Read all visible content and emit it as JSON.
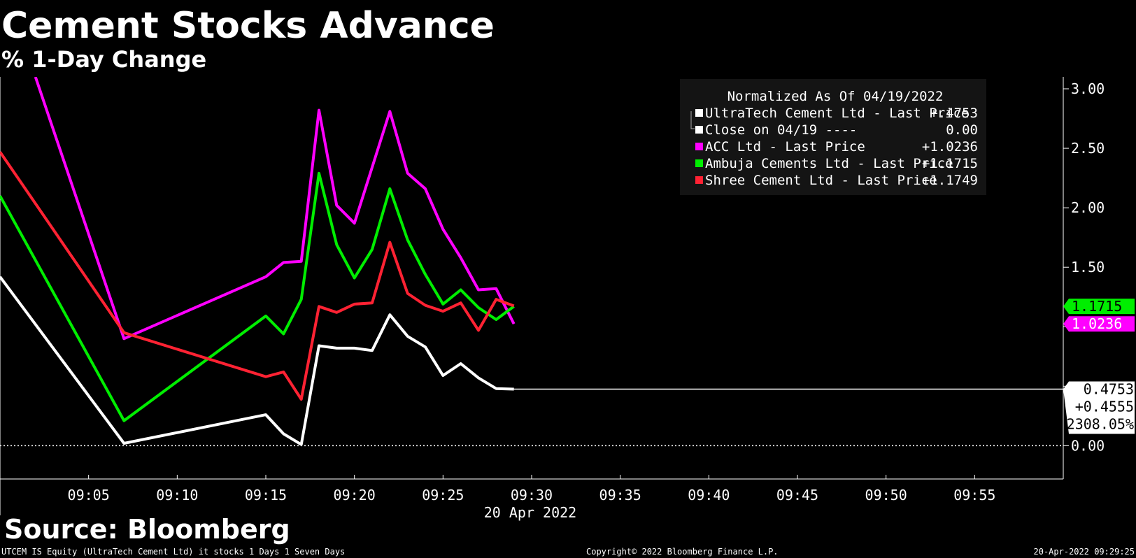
{
  "chart_data": {
    "type": "line",
    "title": "Cement Stocks Advance",
    "subtitle": "% 1-Day Change",
    "x_date_label": "20 Apr 2022",
    "x_ticks": [
      "09:05",
      "09:10",
      "09:15",
      "09:20",
      "09:25",
      "09:30",
      "09:35",
      "09:40",
      "09:45",
      "09:50",
      "09:55"
    ],
    "y_ticks": [
      "3.00",
      "2.50",
      "2.00",
      "1.50",
      "0.00"
    ],
    "ylim": [
      -0.28,
      3.1
    ],
    "xlim": [
      "09:00",
      "09:60"
    ],
    "grid": false,
    "legend": {
      "title": "Normalized As Of 04/19/2022",
      "placement": "top-right",
      "entries": [
        {
          "label": "UltraTech Cement Ltd - Last Price",
          "value": "+.4753",
          "color": "#ffffff"
        },
        {
          "label": "Close on 04/19 ----",
          "value": "0.00",
          "color": "#ffffff"
        },
        {
          "label": "ACC Ltd - Last Price",
          "value": "+1.0236",
          "color": "#ff00ff"
        },
        {
          "label": "Ambuja Cements Ltd - Last Price",
          "value": "+1.1715",
          "color": "#00ee00"
        },
        {
          "label": "Shree Cement Ltd - Last Price",
          "value": "+1.1749",
          "color": "#ff2233"
        }
      ]
    },
    "series": [
      {
        "name": "UltraTech Cement Ltd - Last Price",
        "color": "#ffffff",
        "x": [
          "09:00",
          "09:07",
          "09:15",
          "09:16",
          "09:17",
          "09:18",
          "09:19",
          "09:20",
          "09:21",
          "09:22",
          "09:23",
          "09:24",
          "09:25",
          "09:26",
          "09:27",
          "09:28",
          "09:29"
        ],
        "y": [
          1.42,
          0.02,
          0.26,
          0.1,
          0.01,
          0.84,
          0.82,
          0.82,
          0.8,
          1.1,
          0.92,
          0.83,
          0.59,
          0.69,
          0.57,
          0.48,
          0.4753
        ]
      },
      {
        "name": "ACC Ltd - Last Price",
        "color": "#ff00ff",
        "x": [
          "09:02",
          "09:07",
          "09:15",
          "09:16",
          "09:17",
          "09:18",
          "09:19",
          "09:20",
          "09:21",
          "09:22",
          "09:23",
          "09:24",
          "09:25",
          "09:26",
          "09:27",
          "09:28",
          "09:29"
        ],
        "y": [
          3.1,
          0.9,
          1.42,
          1.54,
          1.55,
          2.82,
          2.02,
          1.87,
          2.34,
          2.81,
          2.29,
          2.16,
          1.82,
          1.58,
          1.31,
          1.32,
          1.0236
        ]
      },
      {
        "name": "Ambuja Cements Ltd - Last Price",
        "color": "#00ee00",
        "x": [
          "09:00",
          "09:07",
          "09:15",
          "09:16",
          "09:17",
          "09:18",
          "09:19",
          "09:20",
          "09:21",
          "09:22",
          "09:23",
          "09:24",
          "09:25",
          "09:26",
          "09:27",
          "09:28",
          "09:29"
        ],
        "y": [
          2.1,
          0.21,
          1.09,
          0.94,
          1.23,
          2.29,
          1.69,
          1.41,
          1.65,
          2.16,
          1.73,
          1.44,
          1.19,
          1.31,
          1.16,
          1.06,
          1.1715
        ]
      },
      {
        "name": "Shree Cement Ltd - Last Price",
        "color": "#ff2233",
        "x": [
          "09:00",
          "09:07",
          "09:15",
          "09:16",
          "09:17",
          "09:18",
          "09:19",
          "09:20",
          "09:21",
          "09:22",
          "09:23",
          "09:24",
          "09:25",
          "09:26",
          "09:27",
          "09:28",
          "09:29"
        ],
        "y": [
          2.47,
          0.95,
          0.58,
          0.62,
          0.39,
          1.17,
          1.12,
          1.19,
          1.2,
          1.71,
          1.28,
          1.18,
          1.13,
          1.2,
          0.97,
          1.23,
          1.1749
        ]
      }
    ],
    "baseline": {
      "name": "Close on 04/19",
      "y": 0.0
    },
    "end_labels": [
      {
        "text": "1.1715",
        "y": 1.1715,
        "bg": "#00ee00",
        "fg": "#000000"
      },
      {
        "text": "1.0236",
        "y": 1.0236,
        "bg": "#ff00ff",
        "fg": "#ffffff"
      }
    ],
    "ultratech_box": {
      "y": 0.4753,
      "lines": [
        "0.4753",
        "+0.4555",
        "2308.05%"
      ]
    },
    "source": "Source: Bloomberg",
    "footer_left": "UTCEM IS Equity (UltraTech Cement Ltd) it stocks 1 Days 1 Seven Days",
    "footer_center": "Copyright© 2022 Bloomberg Finance L.P.",
    "footer_right": "20-Apr-2022 09:29:25"
  }
}
